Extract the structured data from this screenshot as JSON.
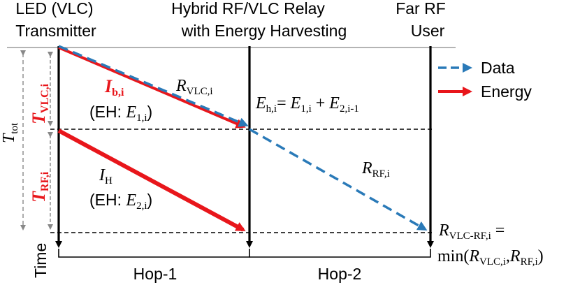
{
  "columns": {
    "transmitter": {
      "line1": "LED (VLC)",
      "line2": "Transmitter"
    },
    "relay": {
      "line1": "Hybrid RF/VLC Relay",
      "line2": "with Energy Harvesting"
    },
    "user": {
      "line1": "Far RF",
      "line2": "User"
    }
  },
  "axis": {
    "time_label": "Time",
    "hop1": "Hop-1",
    "hop2": "Hop-2"
  },
  "intervals": {
    "t_tot": {
      "base": "T",
      "sub": "tot"
    },
    "t_vlc": {
      "base": "T",
      "sub": "VLC,i"
    },
    "t_rf": {
      "base": "T",
      "sub": "RF,i"
    }
  },
  "legend": {
    "data": "Data",
    "energy": "Energy"
  },
  "colors": {
    "data": "#2a7ab8",
    "energy": "#e8161b",
    "axis": "#000000",
    "guide": "#888888"
  },
  "labels": {
    "r_vlc": {
      "base": "R",
      "sub": "VLC,i"
    },
    "i_b": {
      "base": "I",
      "sub": "b,i"
    },
    "eh1": {
      "prefix": "(EH: ",
      "base": "E",
      "sub": "1,i",
      "suffix": ")"
    },
    "e_h": {
      "lhs_base": "E",
      "lhs_sub": "h,i",
      "eq": "= ",
      "t1_base": "E",
      "t1_sub": "1,i",
      "plus": " + ",
      "t2_base": "E",
      "t2_sub": "2,i-1"
    },
    "r_rf": {
      "base": "R",
      "sub": "RF,i"
    },
    "i_h": {
      "base": "I",
      "sub": "H"
    },
    "eh2": {
      "prefix": "(EH: ",
      "base": "E",
      "sub": "2,i",
      "suffix": ")"
    },
    "r_vlc_rf": {
      "base": "R",
      "sub": "VLC-RF,i",
      "eq": " ="
    },
    "min_expr": {
      "fn": "min(",
      "a_base": "R",
      "a_sub": "VLC,i",
      "comma": ",",
      "b_base": "R",
      "b_sub": "RF,i",
      "close": ")"
    }
  }
}
